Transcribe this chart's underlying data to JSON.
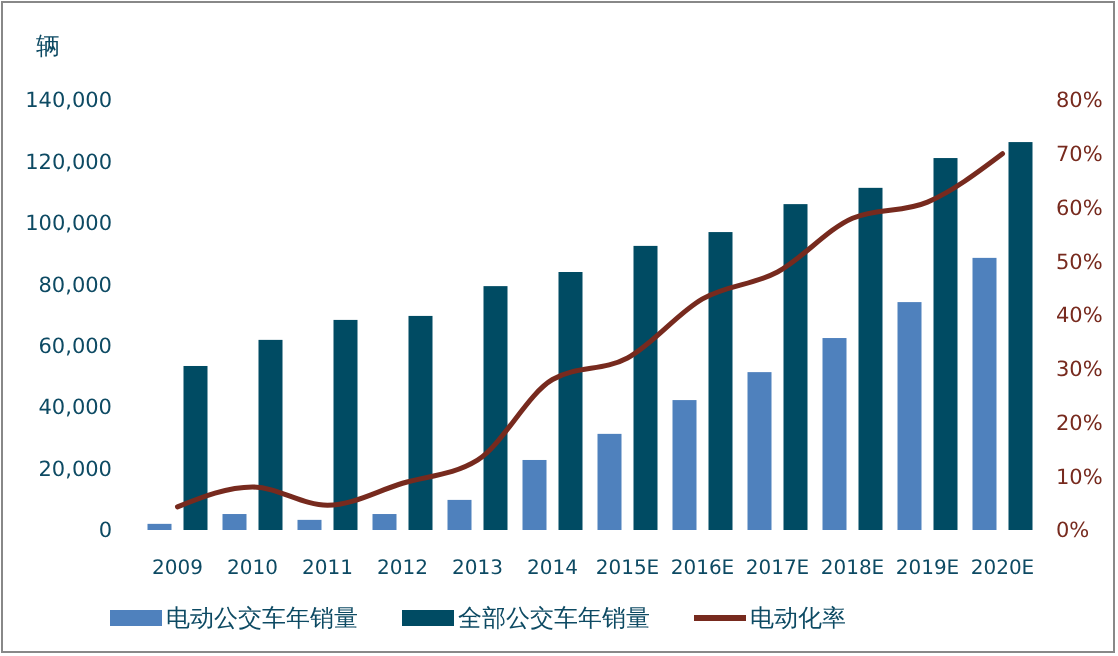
{
  "chart_data": {
    "type": "bar",
    "ylabel": "辆",
    "categories": [
      "2009",
      "2010",
      "2011",
      "2012",
      "2013",
      "2014",
      "2015E",
      "2016E",
      "2017E",
      "2018E",
      "2019E",
      "2020E"
    ],
    "series": [
      {
        "name": "电动公交车年销量",
        "color": "#4f81bd",
        "values": [
          2000,
          5200,
          3300,
          5200,
          9800,
          22800,
          31300,
          42300,
          51400,
          62500,
          74200,
          88600
        ]
      },
      {
        "name": "全部公交车年销量",
        "color": "#004b63",
        "values": [
          53400,
          61900,
          68400,
          69700,
          79400,
          84000,
          92500,
          97000,
          106100,
          111400,
          121100,
          126300
        ]
      },
      {
        "name": "电动化率",
        "type": "line",
        "axis": "y2",
        "color": "#772a1e",
        "values": [
          4.3,
          8,
          4.6,
          8.7,
          13,
          28,
          32,
          43,
          48,
          58,
          61,
          70
        ]
      }
    ],
    "ylim": [
      0,
      140000
    ],
    "yticks": [
      {
        "value": 0,
        "label": "0"
      },
      {
        "value": 20000,
        "label": "20,000"
      },
      {
        "value": 40000,
        "label": "40,000"
      },
      {
        "value": 60000,
        "label": "60,000"
      },
      {
        "value": 80000,
        "label": "80,000"
      },
      {
        "value": 100000,
        "label": "100,000"
      },
      {
        "value": 120000,
        "label": "120,000"
      },
      {
        "value": 140000,
        "label": "140,000"
      }
    ],
    "y2lim": [
      0,
      80
    ],
    "y2ticks": [
      {
        "value": 0,
        "label": "0%"
      },
      {
        "value": 10,
        "label": "10%"
      },
      {
        "value": 20,
        "label": "20%"
      },
      {
        "value": 30,
        "label": "30%"
      },
      {
        "value": 40,
        "label": "40%"
      },
      {
        "value": 50,
        "label": "50%"
      },
      {
        "value": 60,
        "label": "60%"
      },
      {
        "value": 70,
        "label": "70%"
      },
      {
        "value": 80,
        "label": "80%"
      }
    ],
    "legend": "bottom",
    "grid": false
  }
}
